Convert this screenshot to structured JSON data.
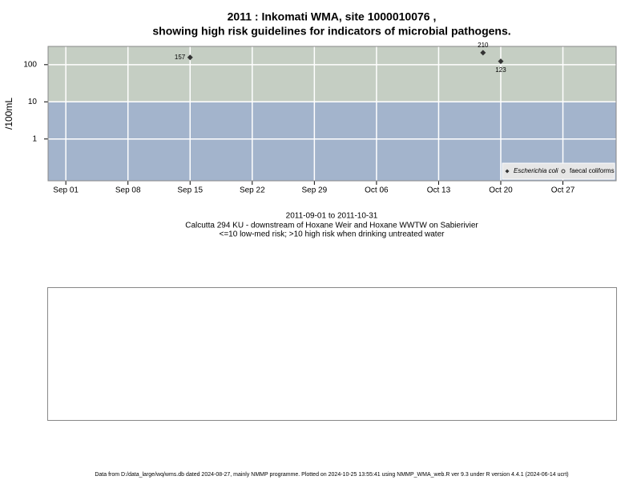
{
  "chart_data": {
    "type": "scatter",
    "title": "2011 : Inkomati WMA, site 1000010076 ,",
    "subtitle": "showing high risk guidelines for indicators of microbial pathogens.",
    "y_label": "/100mL",
    "x": [
      "2011-09-15",
      "2011-10-18",
      "2011-10-20"
    ],
    "series": [
      {
        "name": "Escherichia coli",
        "color": "#333333",
        "values": [
          157,
          210,
          123
        ]
      },
      {
        "name": "faecal coliforms",
        "color": "#333333",
        "values": [
          null,
          null,
          null
        ]
      }
    ],
    "xlim": [
      "2011-08-30",
      "2011-11-02"
    ],
    "xticks": [
      {
        "value": "2011-09-01",
        "label": "Sep 01"
      },
      {
        "value": "2011-09-08",
        "label": "Sep 08"
      },
      {
        "value": "2011-09-15",
        "label": "Sep 15"
      },
      {
        "value": "2011-09-22",
        "label": "Sep 22"
      },
      {
        "value": "2011-09-29",
        "label": "Sep 29"
      },
      {
        "value": "2011-10-06",
        "label": "Oct 06"
      },
      {
        "value": "2011-10-13",
        "label": "Oct 13"
      },
      {
        "value": "2011-10-20",
        "label": "Oct 20"
      },
      {
        "value": "2011-10-27",
        "label": "Oct 27"
      }
    ],
    "ylim": [
      0.075,
      310
    ],
    "yticks": [
      1,
      10,
      100
    ],
    "log_y": true,
    "grid": true,
    "threshold": 10,
    "high_risk_color": "#c5cec3",
    "low_risk_color": "#a3b4cc",
    "legend": "bottom-right",
    "caption": [
      "2011-09-01 to 2011-10-31",
      "Calcutta 294 KU - downstream of Hoxane Weir and Hoxane WWTW on Sabierivier",
      "<=10 low-med risk; >10 high risk when drinking untreated water"
    ],
    "footer": "Data from D:/data_large/wq/wms.db dated 2024-08-27, mainly NMMP programme. Plotted on 2024-10-25 13:55:41 using NMMP_WMA_web.R ver 9.3 under R version 4.4.1 (2024-06-14 ucrt)"
  }
}
